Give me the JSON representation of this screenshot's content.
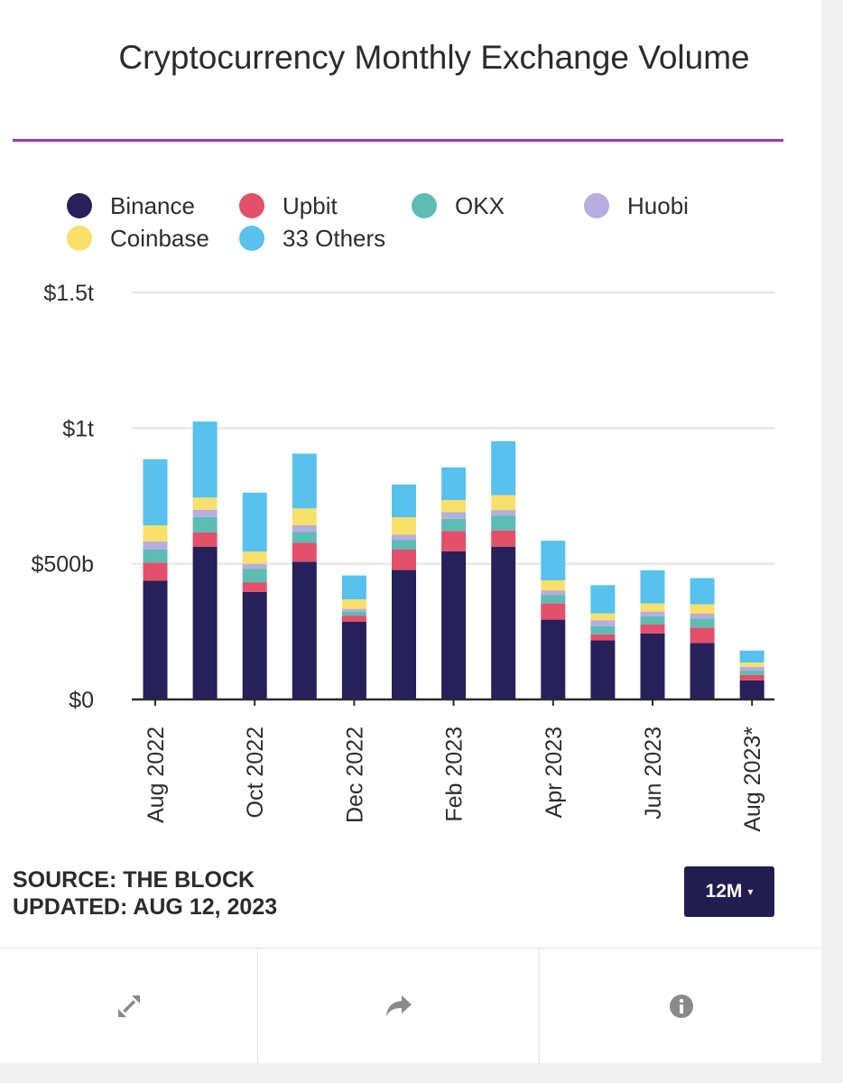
{
  "chart_data": {
    "type": "bar",
    "stacked": true,
    "title": "Cryptocurrency Monthly Exchange Volume",
    "categories": [
      "Aug 2022",
      "Sep 2022",
      "Oct 2022",
      "Nov 2022",
      "Dec 2022",
      "Jan 2023",
      "Feb 2023",
      "Mar 2023",
      "Apr 2023",
      "May 2023",
      "Jun 2023",
      "Jul 2023",
      "Aug 2023*"
    ],
    "x_tick_labels": [
      "Aug 2022",
      "Oct 2022",
      "Dec 2022",
      "Feb 2023",
      "Apr 2023",
      "Jun 2023",
      "Aug 2023*"
    ],
    "y_unit": "USD billions",
    "ylim": [
      0,
      1500
    ],
    "y_ticks": [
      {
        "value": 0,
        "label": "$0"
      },
      {
        "value": 500,
        "label": "$500b"
      },
      {
        "value": 1000,
        "label": "$1t"
      },
      {
        "value": 1500,
        "label": "$1.5t"
      }
    ],
    "legend_position": "top",
    "series": [
      {
        "name": "Binance",
        "color": "#27205a",
        "values": [
          438,
          563,
          396,
          508,
          286,
          477,
          546,
          563,
          294,
          218,
          243,
          208,
          70
        ]
      },
      {
        "name": "Upbit",
        "color": "#e2506a",
        "values": [
          66,
          53,
          36,
          70,
          23,
          75,
          75,
          60,
          60,
          22,
          34,
          57,
          20
        ]
      },
      {
        "name": "OKX",
        "color": "#5dbcb4",
        "values": [
          48,
          57,
          50,
          40,
          15,
          35,
          45,
          55,
          30,
          30,
          30,
          33,
          16
        ]
      },
      {
        "name": "Huobi",
        "color": "#b7addf",
        "values": [
          30,
          26,
          18,
          24,
          10,
          20,
          24,
          20,
          18,
          22,
          17,
          18,
          14
        ]
      },
      {
        "name": "Coinbase",
        "color": "#f8e06a",
        "values": [
          60,
          45,
          45,
          62,
          35,
          65,
          45,
          55,
          37,
          25,
          30,
          35,
          16
        ]
      },
      {
        "name": "33 Others",
        "color": "#58c1ee",
        "values": [
          243,
          280,
          217,
          202,
          88,
          120,
          120,
          199,
          146,
          104,
          122,
          96,
          44
        ]
      }
    ]
  },
  "legend": [
    {
      "label": "Binance",
      "color": "#27205a"
    },
    {
      "label": "Upbit",
      "color": "#e2506a"
    },
    {
      "label": "OKX",
      "color": "#5dbcb4"
    },
    {
      "label": "Huobi",
      "color": "#b7addf"
    },
    {
      "label": "Coinbase",
      "color": "#f8e06a"
    },
    {
      "label": "33 Others",
      "color": "#58c1ee"
    }
  ],
  "footer": {
    "source": "SOURCE: THE BLOCK",
    "updated": "UPDATED: AUG 12, 2023",
    "range_label": "12M",
    "range_caret": "▾"
  },
  "toolbar": {
    "icons": [
      "expand-icon",
      "share-icon",
      "info-icon"
    ]
  },
  "colors": {
    "accent_rule": "#9c36c9",
    "button_bg": "#221d4f",
    "icon_gray": "#8a8a8a"
  }
}
